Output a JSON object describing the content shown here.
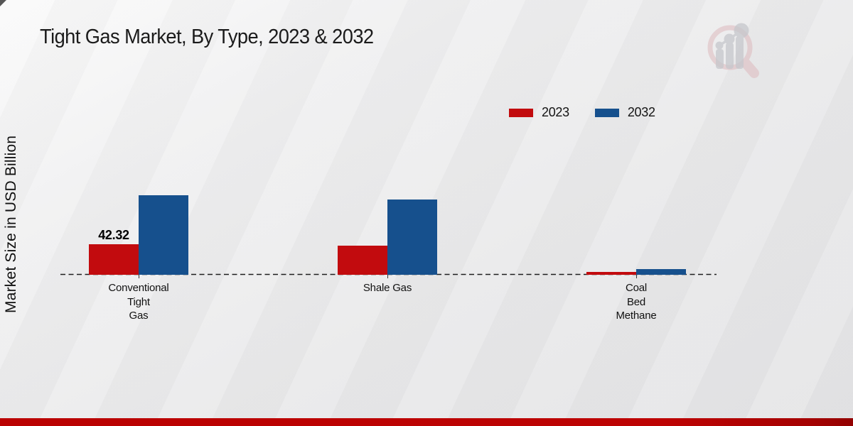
{
  "page": {
    "title": "Tight Gas Market, By Type, 2023 & 2032"
  },
  "y_axis": {
    "label": "Market Size in USD Billion"
  },
  "legend": {
    "items": [
      {
        "label": "2023",
        "color": "#c20b0e"
      },
      {
        "label": "2032",
        "color": "#16508d"
      }
    ]
  },
  "chart_data": {
    "type": "bar",
    "title": "Tight Gas Market, By Type, 2023 & 2032",
    "ylabel": "Market Size in USD Billion",
    "xlabel": "",
    "categories": [
      "Conventional Tight Gas",
      "Shale Gas",
      "Coal Bed Methane"
    ],
    "category_label_lines": [
      [
        "Conventional",
        "Tight",
        "Gas"
      ],
      [
        "Shale Gas"
      ],
      [
        "Coal",
        "Bed",
        "Methane"
      ]
    ],
    "series": [
      {
        "name": "2023",
        "color": "#c20b0e",
        "values": [
          42.32,
          40.4,
          4.2
        ]
      },
      {
        "name": "2032",
        "color": "#16508d",
        "values": [
          110.3,
          104.3,
          8.2
        ]
      }
    ],
    "data_labels": [
      {
        "series": "2023",
        "category": "Conventional Tight Gas",
        "text": "42.32"
      }
    ],
    "baseline": {
      "value": 0,
      "style": "dashed"
    },
    "grid": false,
    "legend_position": "top-right",
    "note": "Only the 2023 Conventional Tight Gas bar is labeled; other values estimated from bar heights"
  },
  "watermark": {
    "name": "market-research-future-logo"
  },
  "footer": {
    "color": "#ba0202"
  }
}
